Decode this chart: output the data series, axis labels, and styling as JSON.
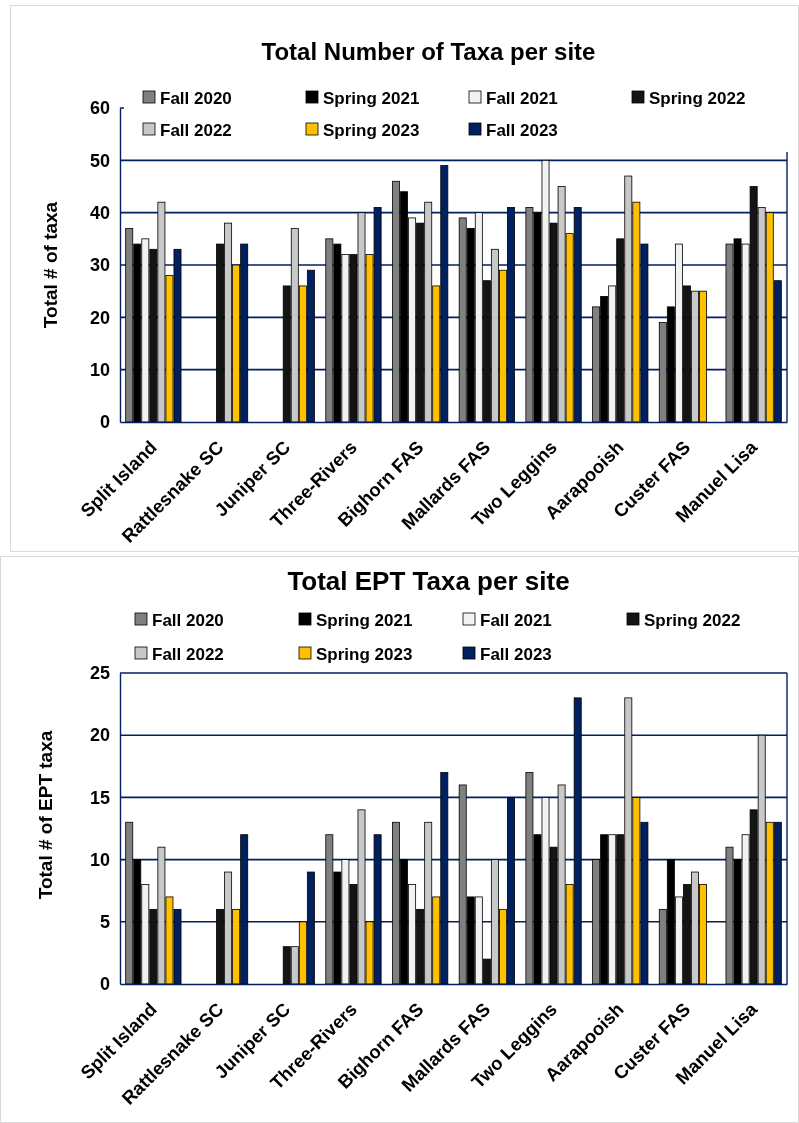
{
  "chart_data": [
    {
      "type": "bar",
      "title": "Total Number of Taxa per site",
      "ylabel": "Total # of taxa",
      "categories": [
        "Split Island",
        "Rattlesnake SC",
        "Juniper SC",
        "Three-Rivers",
        "Bighorn FAS",
        "Mallards FAS",
        "Two Leggins",
        "Aarapooish",
        "Custer FAS",
        "Manuel Lisa"
      ],
      "series": [
        {
          "name": "Fall 2020",
          "color": "#808080",
          "values": [
            37,
            null,
            null,
            35,
            46,
            39,
            41,
            22,
            19,
            34
          ]
        },
        {
          "name": "Spring 2021",
          "color": "#000000",
          "values": [
            34,
            null,
            null,
            34,
            44,
            37,
            40,
            24,
            22,
            35
          ]
        },
        {
          "name": "Fall 2021",
          "color": "#f2f2f2",
          "values": [
            35,
            null,
            null,
            32,
            39,
            40,
            50,
            26,
            34,
            34
          ]
        },
        {
          "name": "Spring 2022",
          "color": "#141414",
          "values": [
            33,
            34,
            26,
            32,
            38,
            27,
            38,
            35,
            26,
            45
          ]
        },
        {
          "name": "Fall 2022",
          "color": "#c8c8c8",
          "values": [
            42,
            38,
            37,
            40,
            42,
            33,
            45,
            47,
            25,
            41
          ]
        },
        {
          "name": "Spring 2023",
          "color": "#ffc000",
          "values": [
            28,
            30,
            26,
            32,
            26,
            29,
            36,
            42,
            25,
            40
          ]
        },
        {
          "name": "Fall 2023",
          "color": "#002060",
          "values": [
            33,
            34,
            29,
            41,
            49,
            41,
            41,
            34,
            null,
            27
          ]
        }
      ],
      "ylim": [
        0,
        60
      ],
      "yticks": [
        0,
        10,
        20,
        30,
        40,
        50,
        60
      ],
      "grid": "y",
      "legend": "top"
    },
    {
      "type": "bar",
      "title": "Total EPT Taxa per site",
      "ylabel": "Total # of EPT taxa",
      "categories": [
        "Split Island",
        "Rattlesnake SC",
        "Juniper SC",
        "Three-Rivers",
        "Bighorn FAS",
        "Mallards FAS",
        "Two Leggins",
        "Aarapooish",
        "Custer FAS",
        "Manuel Lisa"
      ],
      "series": [
        {
          "name": "Fall 2020",
          "color": "#808080",
          "values": [
            13,
            null,
            null,
            12,
            13,
            16,
            17,
            10,
            6,
            11
          ]
        },
        {
          "name": "Spring 2021",
          "color": "#000000",
          "values": [
            10,
            null,
            null,
            9,
            10,
            7,
            12,
            12,
            10,
            10
          ]
        },
        {
          "name": "Fall 2021",
          "color": "#f2f2f2",
          "values": [
            8,
            null,
            null,
            10,
            8,
            7,
            15,
            12,
            7,
            12
          ]
        },
        {
          "name": "Spring 2022",
          "color": "#141414",
          "values": [
            6,
            6,
            3,
            8,
            6,
            2,
            11,
            12,
            8,
            14
          ]
        },
        {
          "name": "Fall 2022",
          "color": "#c8c8c8",
          "values": [
            11,
            9,
            3,
            14,
            13,
            10,
            16,
            23,
            9,
            20
          ]
        },
        {
          "name": "Spring 2023",
          "color": "#ffc000",
          "values": [
            7,
            6,
            5,
            5,
            7,
            6,
            8,
            15,
            8,
            13
          ]
        },
        {
          "name": "Fall 2023",
          "color": "#002060",
          "values": [
            6,
            12,
            9,
            12,
            17,
            15,
            23,
            13,
            null,
            13
          ]
        }
      ],
      "ylim": [
        0,
        25
      ],
      "yticks": [
        0,
        5,
        10,
        15,
        20,
        25
      ],
      "grid": "y",
      "legend": "top"
    }
  ]
}
